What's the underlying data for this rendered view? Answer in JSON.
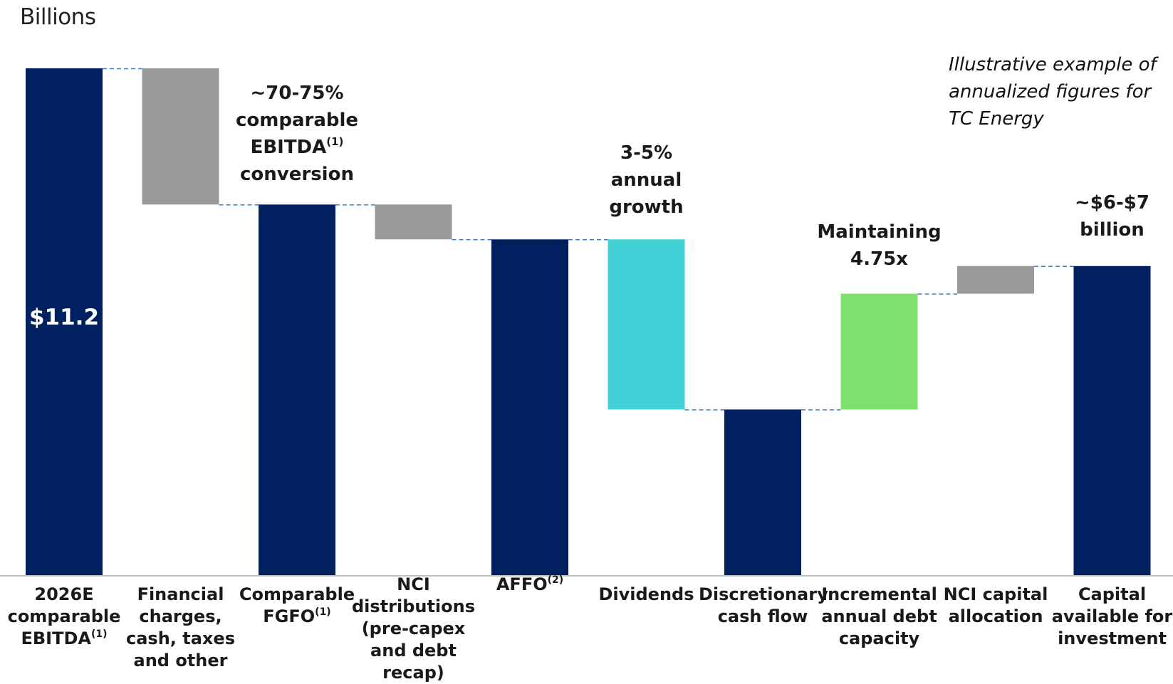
{
  "chart_data": {
    "type": "bar",
    "subtype": "waterfall",
    "unit_label": "Billions",
    "note": [
      "Illustrative example of",
      "annualized figures for",
      "TC Energy"
    ],
    "ylim": [
      0,
      11.2
    ],
    "grid": false,
    "bars": [
      {
        "id": "ebitda",
        "kind": "total",
        "start": 0,
        "end": 11.2,
        "color": "#002060",
        "value_label": "$11.2",
        "label_lines": [
          "2026E",
          "comparable",
          "EBITDA"
        ],
        "sup": "(1)"
      },
      {
        "id": "financial",
        "kind": "decrease",
        "start": 8.19,
        "end": 11.2,
        "color": "#999999",
        "label_lines": [
          "Financial",
          "charges,",
          "cash, taxes",
          "and other"
        ],
        "sup": ""
      },
      {
        "id": "fgfo",
        "kind": "total",
        "start": 0,
        "end": 8.19,
        "color": "#002060",
        "label_lines": [
          "Comparable",
          "FGFO"
        ],
        "sup": "(1)"
      },
      {
        "id": "nci_dist",
        "kind": "decrease",
        "start": 7.42,
        "end": 8.19,
        "color": "#999999",
        "label_lines": [
          "NCI",
          "distributions",
          "(pre-capex",
          "and debt",
          "recap)"
        ],
        "sup": ""
      },
      {
        "id": "affo",
        "kind": "total",
        "start": 0,
        "end": 7.42,
        "color": "#002060",
        "label_lines": [
          "AFFO"
        ],
        "sup": "(2)"
      },
      {
        "id": "dividends",
        "kind": "decrease",
        "start": 3.66,
        "end": 7.42,
        "color": "#41d1d6",
        "label_lines": [
          "Dividends"
        ],
        "sup": ""
      },
      {
        "id": "dcf",
        "kind": "total",
        "start": 0,
        "end": 3.66,
        "color": "#002060",
        "label_lines": [
          "Discretionary",
          "cash flow"
        ],
        "sup": ""
      },
      {
        "id": "debt",
        "kind": "increase",
        "start": 3.66,
        "end": 6.22,
        "color": "#7fe06f",
        "label_lines": [
          "Incremental",
          "annual debt",
          "capacity"
        ],
        "sup": ""
      },
      {
        "id": "nci_cap",
        "kind": "increase",
        "start": 6.22,
        "end": 6.83,
        "color": "#999999",
        "label_lines": [
          "NCI capital",
          "allocation"
        ],
        "sup": ""
      },
      {
        "id": "capital",
        "kind": "total",
        "start": 0,
        "end": 6.83,
        "color": "#002060",
        "label_lines": [
          "Capital",
          "available for",
          "investment"
        ],
        "sup": ""
      }
    ],
    "annotations": [
      {
        "for": "fgfo",
        "lines": [
          "~70-75%",
          "comparable",
          "EBITDA",
          "conversion"
        ],
        "sup_line": 2,
        "sup": "(1)"
      },
      {
        "for": "dividends",
        "lines": [
          "3-5%",
          "annual",
          "growth"
        ]
      },
      {
        "for": "debt",
        "lines": [
          "Maintaining",
          "4.75x"
        ]
      },
      {
        "for": "capital",
        "lines": [
          "~$6-$7",
          "billion"
        ]
      }
    ]
  }
}
